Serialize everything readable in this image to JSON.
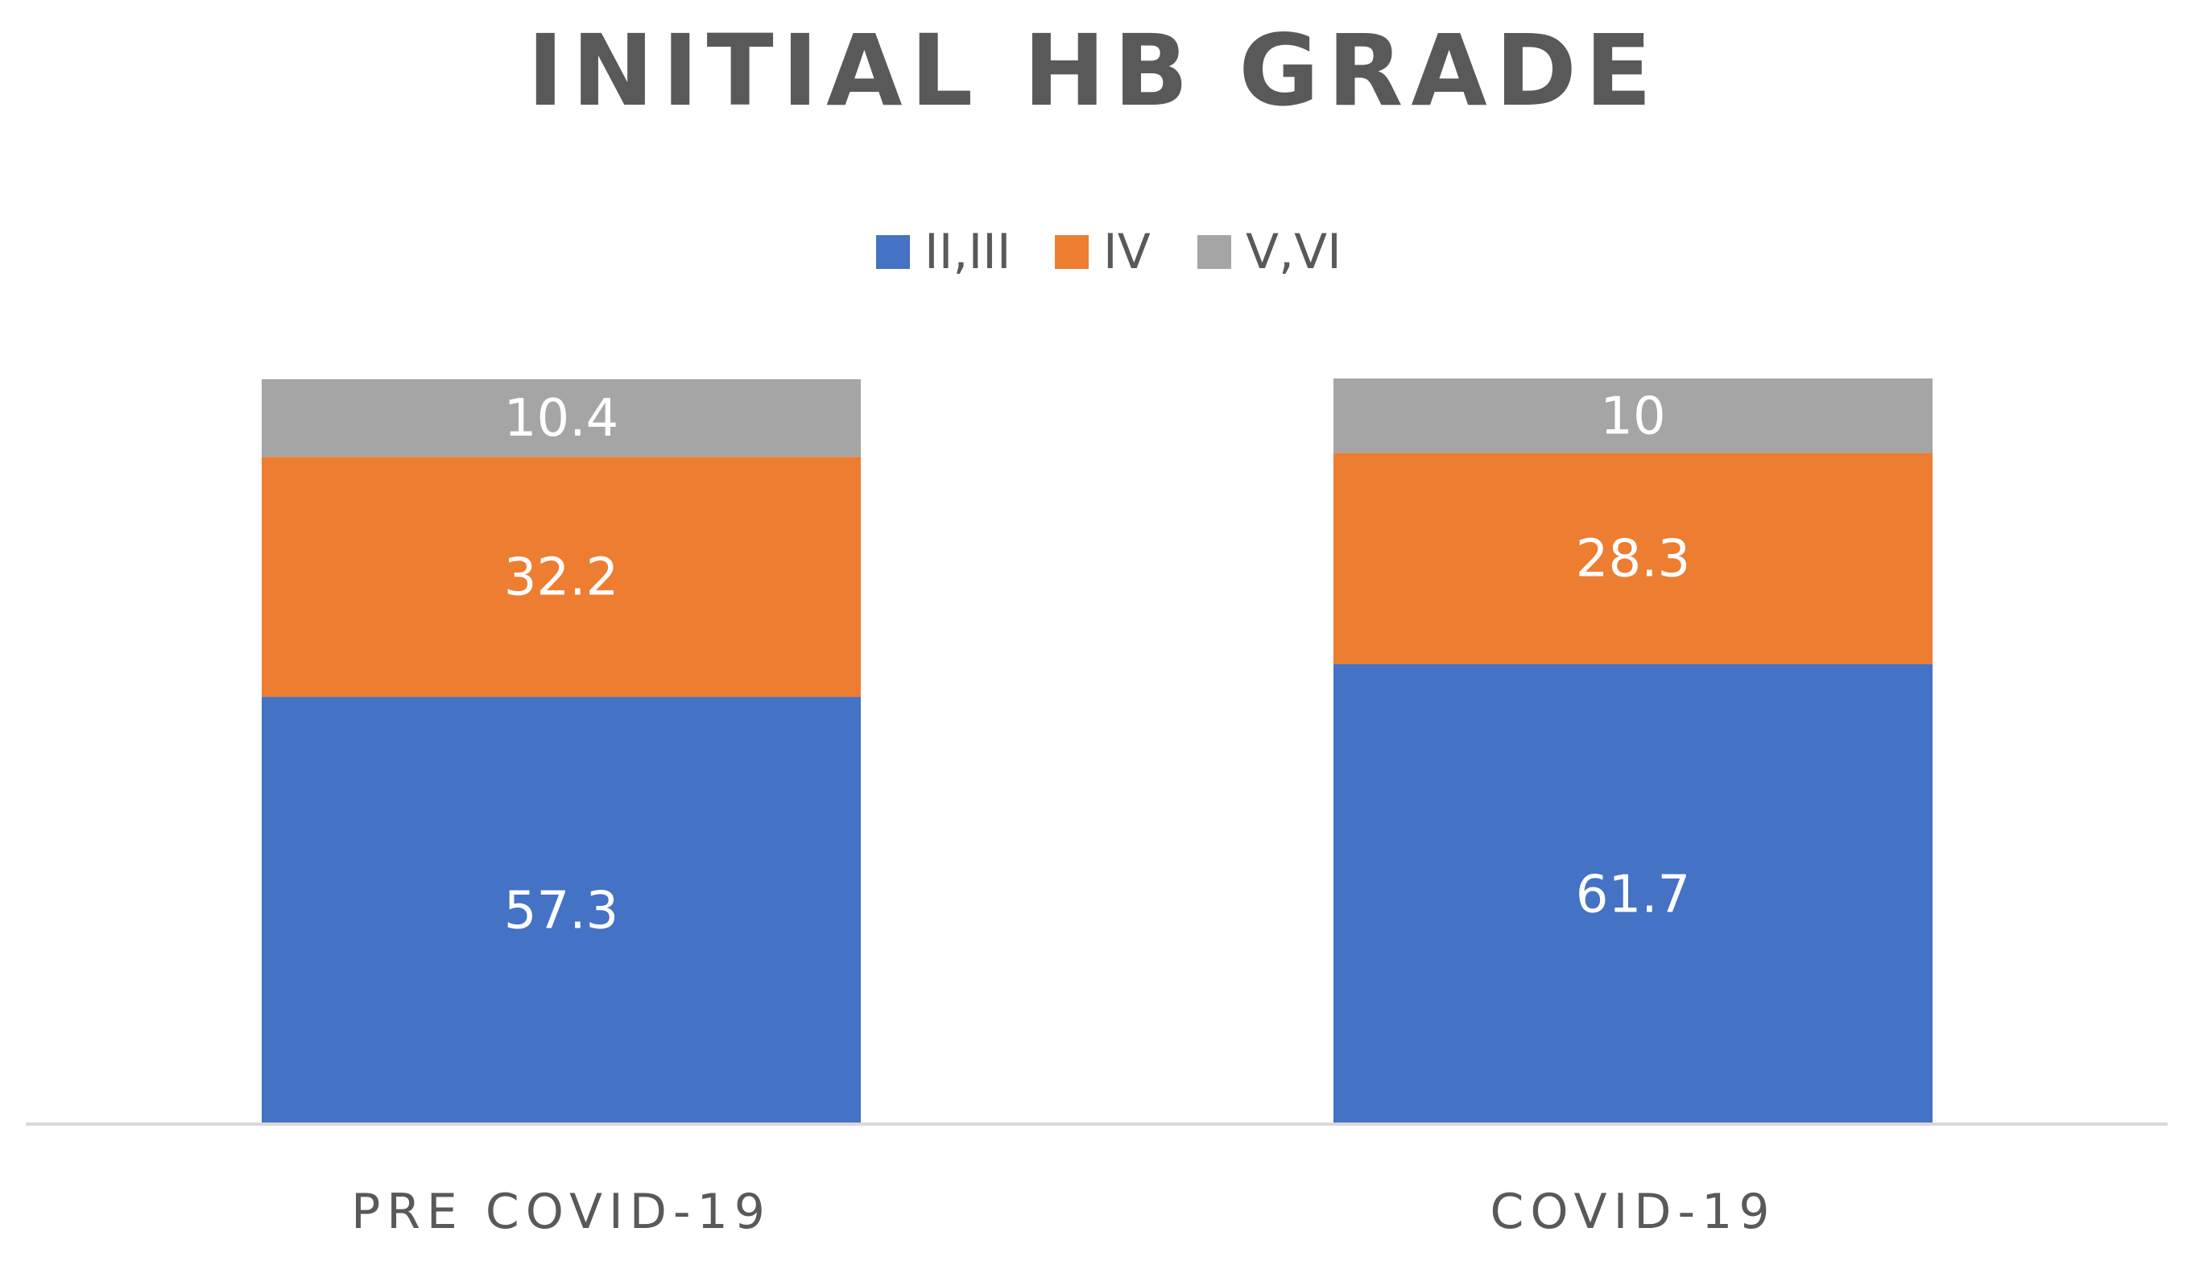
{
  "chart_data": {
    "type": "bar",
    "stacked": true,
    "title": "INITIAL HB GRADE",
    "categories": [
      "PRE COVID-19",
      "COVID-19"
    ],
    "series": [
      {
        "name": "II,III",
        "color": "#4472C4",
        "values": [
          57.3,
          61.7
        ]
      },
      {
        "name": "IV",
        "color": "#ED7D31",
        "values": [
          32.2,
          28.3
        ]
      },
      {
        "name": "V,VI",
        "color": "#A5A5A5",
        "values": [
          10.4,
          10
        ]
      }
    ],
    "ylim": [
      0,
      100
    ],
    "grid": false,
    "legend_position": "top-center",
    "axis_color": "#D9D9D9"
  }
}
